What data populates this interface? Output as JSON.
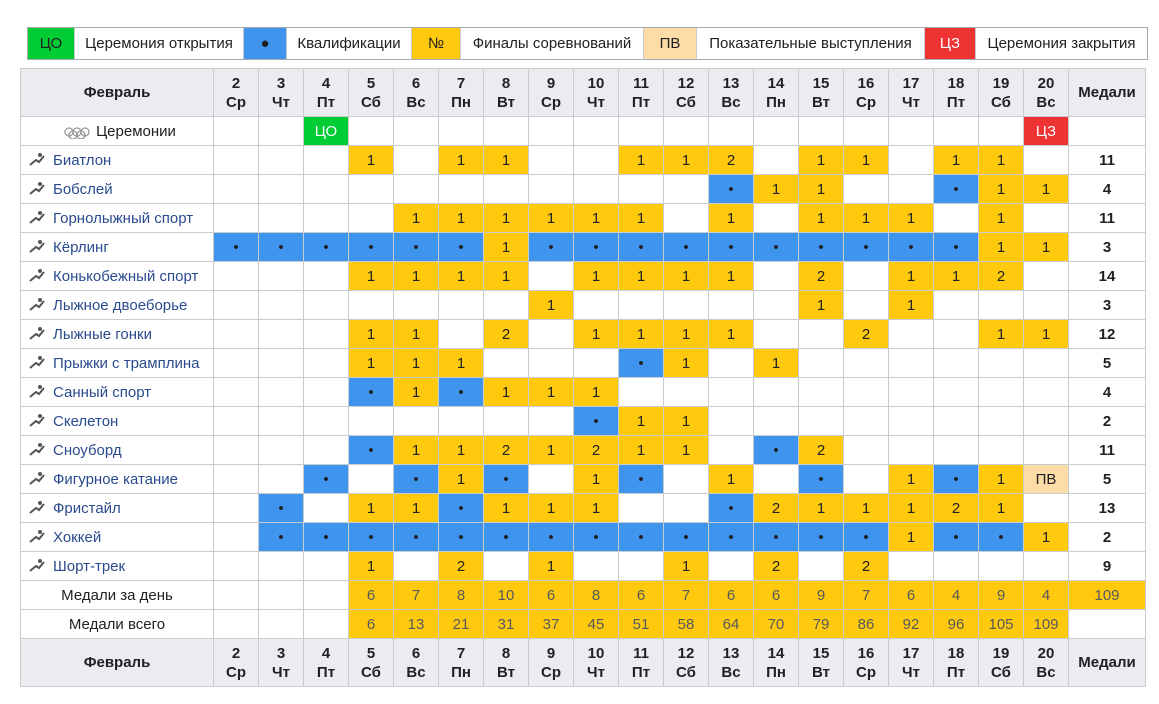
{
  "legend": [
    {
      "symbol": "ЦО",
      "label": "Церемония открытия"
    },
    {
      "symbol": "●",
      "label": "Квалификации"
    },
    {
      "symbol": "№",
      "label": "Финалы соревнований"
    },
    {
      "symbol": "ПВ",
      "label": "Показательные выступления"
    },
    {
      "symbol": "ЦЗ",
      "label": "Церемония закрытия"
    }
  ],
  "header": {
    "month": "Февраль",
    "medals": "Медали",
    "days": [
      {
        "day": 2,
        "weekday": "Ср"
      },
      {
        "day": 3,
        "weekday": "Чт"
      },
      {
        "day": 4,
        "weekday": "Пт"
      },
      {
        "day": 5,
        "weekday": "Сб"
      },
      {
        "day": 6,
        "weekday": "Вс"
      },
      {
        "day": 7,
        "weekday": "Пн"
      },
      {
        "day": 8,
        "weekday": "Вт"
      },
      {
        "day": 9,
        "weekday": "Ср"
      },
      {
        "day": 10,
        "weekday": "Чт"
      },
      {
        "day": 11,
        "weekday": "Пт"
      },
      {
        "day": 12,
        "weekday": "Сб"
      },
      {
        "day": 13,
        "weekday": "Вс"
      },
      {
        "day": 14,
        "weekday": "Пн"
      },
      {
        "day": 15,
        "weekday": "Вт"
      },
      {
        "day": 16,
        "weekday": "Ср"
      },
      {
        "day": 17,
        "weekday": "Чт"
      },
      {
        "day": 18,
        "weekday": "Пт"
      },
      {
        "day": 19,
        "weekday": "Сб"
      },
      {
        "day": 20,
        "weekday": "Вс"
      }
    ]
  },
  "ceremonies": {
    "label": "Церемонии",
    "cells": [
      null,
      null,
      "ЦО",
      null,
      null,
      null,
      null,
      null,
      null,
      null,
      null,
      null,
      null,
      null,
      null,
      null,
      null,
      null,
      "ЦЗ"
    ]
  },
  "sports": [
    {
      "name": "Биатлон",
      "total": 11,
      "cells": [
        null,
        null,
        null,
        1,
        null,
        1,
        1,
        null,
        null,
        1,
        1,
        2,
        null,
        1,
        1,
        null,
        1,
        1,
        null
      ]
    },
    {
      "name": "Бобслей",
      "total": 4,
      "cells": [
        null,
        null,
        null,
        null,
        null,
        null,
        null,
        null,
        null,
        null,
        null,
        "•",
        1,
        1,
        null,
        null,
        "•",
        1,
        1
      ]
    },
    {
      "name": "Горнолыжный спорт",
      "total": 11,
      "cells": [
        null,
        null,
        null,
        null,
        1,
        1,
        1,
        1,
        1,
        1,
        null,
        1,
        null,
        1,
        1,
        1,
        null,
        1,
        null
      ]
    },
    {
      "name": "Кёрлинг",
      "total": 3,
      "cells": [
        "•",
        "•",
        "•",
        "•",
        "•",
        "•",
        1,
        "•",
        "•",
        "•",
        "•",
        "•",
        "•",
        "•",
        "•",
        "•",
        "•",
        1,
        1
      ]
    },
    {
      "name": "Конькобежный спорт",
      "total": 14,
      "cells": [
        null,
        null,
        null,
        1,
        1,
        1,
        1,
        null,
        1,
        1,
        1,
        1,
        null,
        2,
        null,
        1,
        1,
        2,
        null
      ]
    },
    {
      "name": "Лыжное двоеборье",
      "total": 3,
      "cells": [
        null,
        null,
        null,
        null,
        null,
        null,
        null,
        1,
        null,
        null,
        null,
        null,
        null,
        1,
        null,
        1,
        null,
        null,
        null
      ]
    },
    {
      "name": "Лыжные гонки",
      "total": 12,
      "cells": [
        null,
        null,
        null,
        1,
        1,
        null,
        2,
        null,
        1,
        1,
        1,
        1,
        null,
        null,
        2,
        null,
        null,
        1,
        1
      ]
    },
    {
      "name": "Прыжки с трамплина",
      "total": 5,
      "cells": [
        null,
        null,
        null,
        1,
        1,
        1,
        null,
        null,
        null,
        "•",
        1,
        null,
        1,
        null,
        null,
        null,
        null,
        null,
        null
      ]
    },
    {
      "name": "Санный спорт",
      "total": 4,
      "cells": [
        null,
        null,
        null,
        "•",
        1,
        "•",
        1,
        1,
        1,
        null,
        null,
        null,
        null,
        null,
        null,
        null,
        null,
        null,
        null
      ]
    },
    {
      "name": "Скелетон",
      "total": 2,
      "cells": [
        null,
        null,
        null,
        null,
        null,
        null,
        null,
        null,
        "•",
        1,
        1,
        null,
        null,
        null,
        null,
        null,
        null,
        null,
        null
      ]
    },
    {
      "name": "Сноуборд",
      "total": 11,
      "cells": [
        null,
        null,
        null,
        "•",
        1,
        1,
        2,
        1,
        2,
        1,
        1,
        null,
        "•",
        2,
        null,
        null,
        null,
        null,
        null
      ]
    },
    {
      "name": "Фигурное катание",
      "total": 5,
      "cells": [
        null,
        null,
        "•",
        null,
        "•",
        1,
        "•",
        null,
        1,
        "•",
        null,
        1,
        null,
        "•",
        null,
        1,
        "•",
        1,
        "ПВ"
      ]
    },
    {
      "name": "Фристайл",
      "total": 13,
      "cells": [
        null,
        "•",
        null,
        1,
        1,
        "•",
        1,
        1,
        1,
        null,
        null,
        "•",
        2,
        1,
        1,
        1,
        2,
        1,
        null
      ]
    },
    {
      "name": "Хоккей",
      "total": 2,
      "cells": [
        null,
        "•",
        "•",
        "•",
        "•",
        "•",
        "•",
        "•",
        "•",
        "•",
        "•",
        "•",
        "•",
        "•",
        "•",
        1,
        "•",
        "•",
        1
      ]
    },
    {
      "name": "Шорт-трек",
      "total": 9,
      "cells": [
        null,
        null,
        null,
        1,
        null,
        2,
        null,
        1,
        null,
        null,
        1,
        null,
        2,
        null,
        2,
        null,
        null,
        null,
        null
      ]
    }
  ],
  "daily": {
    "label": "Медали за день",
    "total": 109,
    "values": [
      null,
      null,
      null,
      6,
      7,
      8,
      10,
      6,
      8,
      6,
      7,
      6,
      6,
      9,
      7,
      6,
      4,
      9,
      4
    ]
  },
  "cumulative": {
    "label": "Медали всего",
    "values": [
      null,
      null,
      null,
      6,
      13,
      21,
      31,
      37,
      45,
      51,
      58,
      64,
      70,
      79,
      86,
      92,
      96,
      105,
      109
    ]
  }
}
